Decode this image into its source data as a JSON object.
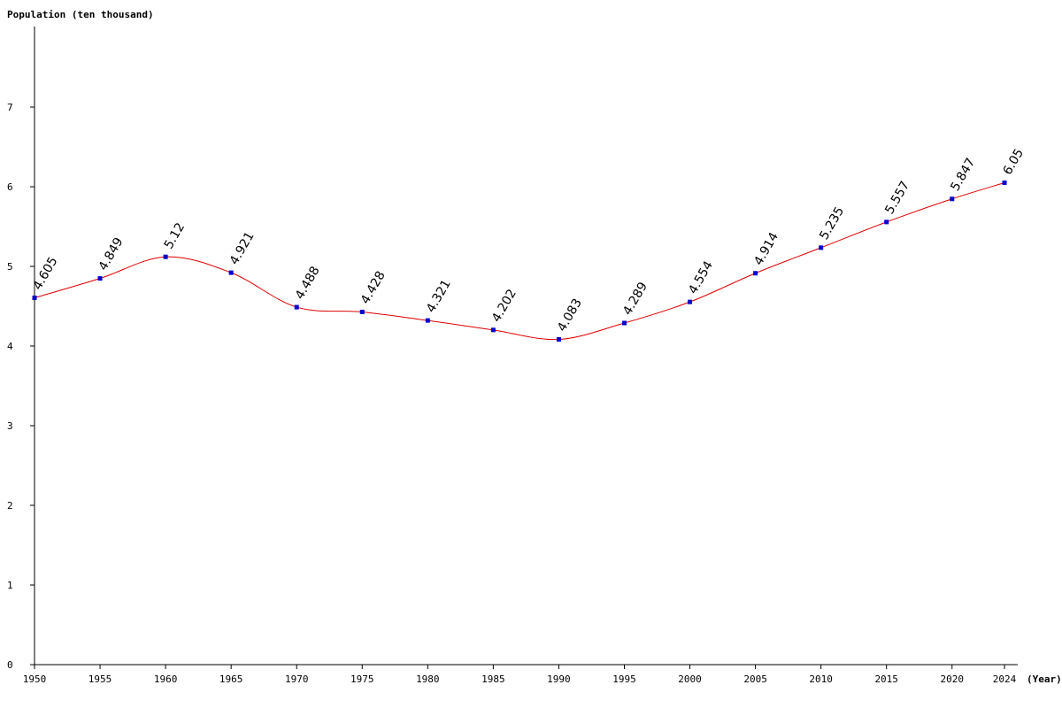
{
  "chart_data": {
    "type": "line",
    "title": "",
    "ylabel": "Population (ten thousand)",
    "xlabel": "(Year)",
    "ylim": [
      0,
      8
    ],
    "yticks": [
      "0",
      "1",
      "2",
      "3",
      "4",
      "5",
      "6",
      "7"
    ],
    "x": [
      1950,
      1955,
      1960,
      1965,
      1970,
      1975,
      1980,
      1985,
      1990,
      1995,
      2000,
      2005,
      2010,
      2015,
      2020,
      2024
    ],
    "xtick_labels": [
      "1950",
      "1955",
      "1960",
      "1965",
      "1970",
      "1975",
      "1980",
      "1985",
      "1990",
      "1995",
      "2000",
      "2005",
      "2010",
      "2015",
      "2020",
      "2024"
    ],
    "values": [
      4.605,
      4.849,
      5.12,
      4.921,
      4.488,
      4.428,
      4.321,
      4.202,
      4.083,
      4.289,
      4.554,
      4.914,
      5.235,
      5.557,
      5.847,
      6.05
    ],
    "value_labels": [
      "4.605",
      "4.849",
      "5.12",
      "4.921",
      "4.488",
      "4.428",
      "4.321",
      "4.202",
      "4.083",
      "4.289",
      "4.554",
      "4.914",
      "5.235",
      "5.557",
      "5.847",
      "6.05"
    ],
    "grid": false,
    "colors": {
      "line": "#dd0000",
      "marker": "#0000cc",
      "axis": "#000000"
    }
  }
}
